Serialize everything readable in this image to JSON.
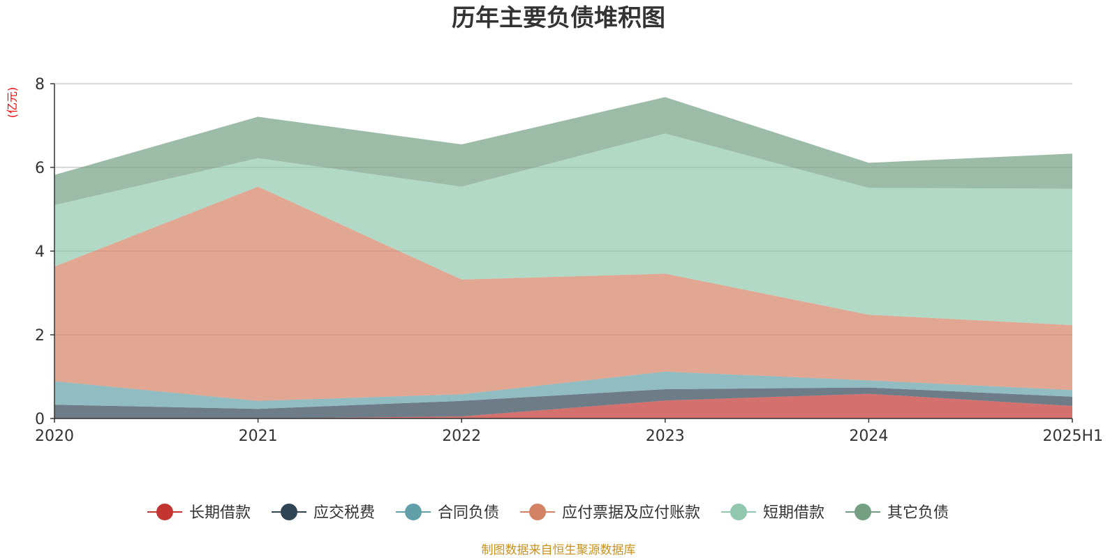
{
  "chart_data": {
    "type": "area",
    "stacked": true,
    "title": "历年主要负债堆积图",
    "unit_label": "(亿元)",
    "categories": [
      "2020",
      "2021",
      "2022",
      "2023",
      "2024",
      "2025H1"
    ],
    "y_ticks": [
      "0",
      "2",
      "4",
      "6",
      "8"
    ],
    "ylim": [
      0,
      8
    ],
    "grid": true,
    "legend_position": "bottom",
    "series": [
      {
        "name": "长期借款",
        "color": "#c23531",
        "values": [
          0.0,
          0.0,
          0.05,
          0.43,
          0.59,
          0.3
        ]
      },
      {
        "name": "应交税费",
        "color": "#2f4554",
        "values": [
          0.33,
          0.23,
          0.37,
          0.27,
          0.15,
          0.22
        ]
      },
      {
        "name": "合同负债",
        "color": "#61a0a8",
        "values": [
          0.56,
          0.19,
          0.16,
          0.42,
          0.17,
          0.16
        ]
      },
      {
        "name": "应付票据及应付账款",
        "color": "#d48265",
        "values": [
          2.74,
          5.12,
          2.74,
          2.34,
          1.57,
          1.55
        ]
      },
      {
        "name": "短期借款",
        "color": "#91c7ae",
        "values": [
          1.47,
          0.68,
          2.22,
          3.35,
          3.03,
          3.26
        ]
      },
      {
        "name": "其它负债",
        "color": "#749f83",
        "values": [
          0.72,
          0.99,
          1.01,
          0.87,
          0.6,
          0.84
        ]
      }
    ]
  },
  "source_note": "制图数据来自恒生聚源数据库"
}
